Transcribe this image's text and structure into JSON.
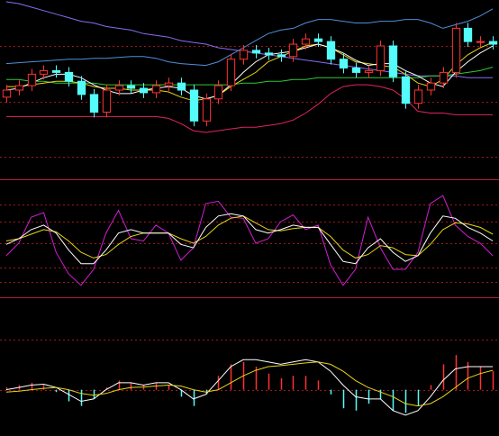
{
  "chart_data": [
    {
      "type": "candlestick",
      "categories": [
        null,
        null,
        null,
        null,
        null,
        null,
        null,
        null,
        null,
        null,
        null,
        null,
        null,
        null,
        null,
        null,
        null,
        null,
        null,
        null,
        null,
        null,
        null,
        null,
        null,
        null,
        null,
        null,
        null,
        null,
        null,
        null,
        null,
        null,
        null,
        null,
        null,
        null,
        null,
        null
      ],
      "open": [
        46,
        50,
        52.5,
        59,
        61,
        60,
        55,
        47.5,
        37.5,
        50,
        52.5,
        51,
        48.5,
        52.5,
        54,
        50,
        32.5,
        45,
        52.5,
        67.5,
        72.5,
        71,
        70,
        69,
        76,
        79,
        77.5,
        67.5,
        62.5,
        60,
        61,
        75,
        57.5,
        42.5,
        50,
        54,
        60,
        85,
        77.5,
        77.5
      ],
      "high": [
        53,
        55.5,
        62,
        64,
        64,
        63,
        58,
        50.5,
        53,
        55.5,
        55.5,
        54,
        55.5,
        57,
        57,
        53,
        48,
        55.5,
        70.5,
        75.5,
        75.5,
        74,
        73,
        79,
        82,
        82,
        80.5,
        70.5,
        65.5,
        64,
        78,
        78,
        60.5,
        53,
        57,
        63,
        88,
        88,
        80.5,
        80.5
      ],
      "low": [
        43,
        47,
        49.5,
        56,
        57,
        52,
        44.5,
        34.5,
        34.5,
        47,
        48,
        45.5,
        45.5,
        49.5,
        47,
        29.5,
        29.5,
        42,
        49.5,
        64.5,
        68,
        67,
        66,
        66,
        73,
        74.5,
        64.5,
        59.5,
        57,
        57,
        58,
        54.5,
        39.5,
        39.5,
        47,
        51,
        57,
        74.5,
        74.5,
        73
      ],
      "close": [
        50,
        52.5,
        59,
        61,
        60,
        55,
        47.5,
        37.5,
        50,
        52.5,
        51,
        48.5,
        52.5,
        54,
        50,
        32.5,
        45,
        52.5,
        67.5,
        72.5,
        71,
        70,
        69,
        76,
        79,
        77.5,
        67.5,
        62.5,
        60,
        61,
        75,
        57.5,
        42.5,
        50,
        54,
        60,
        85,
        77.5,
        77.5,
        76
      ],
      "up_color": "#ff3232",
      "down_color": "#54fcfc",
      "series": [
        {
          "color": "#4f8fd8",
          "values": [
            65,
            65.5,
            66,
            66.5,
            67,
            67.5,
            67.5,
            68,
            68,
            68.5,
            69,
            69,
            68,
            66,
            65,
            64.5,
            64,
            66,
            70,
            74,
            78,
            82,
            84,
            85,
            88,
            90,
            90,
            89,
            88,
            88,
            89,
            89,
            90,
            90,
            88,
            85,
            87,
            89,
            92,
            96
          ]
        },
        {
          "color": "#8a6cf0",
          "values": [
            100,
            99,
            97,
            95,
            93,
            91,
            89,
            88,
            86,
            85,
            84,
            82,
            81,
            80,
            78,
            77,
            76,
            74,
            73,
            72,
            71,
            70,
            69,
            68,
            67,
            66,
            65,
            64,
            63,
            62,
            61,
            60,
            59,
            58,
            58,
            58,
            58,
            57,
            57,
            57
          ]
        },
        {
          "color": "#e0245e",
          "values": [
            35,
            35,
            35,
            35,
            35,
            35,
            35,
            35,
            35,
            35,
            35,
            35,
            35,
            34,
            31,
            27,
            26,
            27,
            28,
            29,
            29,
            30,
            31,
            33,
            37,
            42,
            48,
            52,
            53,
            53,
            52,
            50,
            45,
            38,
            37,
            37,
            36,
            36,
            36,
            36
          ]
        },
        {
          "color": "#2ec83a",
          "values": [
            56,
            56,
            55,
            55,
            54,
            54,
            54,
            54,
            53,
            53,
            53,
            53,
            53,
            53,
            53,
            53,
            53,
            53,
            53,
            54,
            54,
            55,
            55,
            56,
            56,
            57,
            57,
            57,
            57,
            57,
            57,
            57,
            57,
            57,
            58,
            58,
            59,
            60,
            61,
            63
          ]
        },
        {
          "color": "#e8d41a",
          "values": [
            52,
            52,
            53,
            54,
            55,
            55,
            54,
            52,
            51,
            51,
            50,
            50,
            50,
            49,
            46,
            44,
            45,
            47,
            52,
            56,
            60,
            66,
            69,
            72,
            75,
            76,
            74,
            70,
            66,
            65,
            64,
            63,
            59,
            54,
            52,
            56,
            64,
            70,
            74,
            77
          ]
        },
        {
          "color": "#ffffff",
          "values": [
            50,
            51,
            54,
            57,
            59,
            59,
            57,
            53,
            50,
            48,
            48,
            50,
            51,
            52,
            51,
            47,
            45,
            47,
            53,
            60,
            66,
            70,
            71,
            72,
            74,
            76,
            74,
            71,
            67,
            64,
            65,
            65,
            61,
            58,
            54,
            52,
            60,
            66,
            71,
            75
          ]
        }
      ],
      "ylim": [
        0,
        100
      ],
      "gridlines": [
        75,
        43.5,
        12
      ],
      "grid_color": "#a01818"
    },
    {
      "type": "line",
      "series": [
        {
          "color": "#d21ed2",
          "values": [
            35,
            46,
            69,
            73,
            38,
            19,
            9,
            23,
            55,
            75,
            50,
            48,
            62,
            55,
            31,
            42,
            81,
            83,
            69,
            68,
            46,
            50,
            65,
            71,
            58,
            62,
            27,
            9,
            23,
            69,
            42,
            23,
            23,
            38,
            81,
            88,
            62,
            52,
            46,
            35
          ]
        },
        {
          "color": "#e8d41a",
          "values": [
            48,
            50,
            54,
            58,
            56,
            48,
            38,
            33,
            36,
            45,
            52,
            55,
            55,
            55,
            50,
            46,
            52,
            62,
            68,
            70,
            64,
            58,
            57,
            59,
            60,
            60,
            52,
            40,
            33,
            36,
            44,
            42,
            36,
            35,
            45,
            58,
            64,
            63,
            60,
            54
          ]
        },
        {
          "color": "#ffffff",
          "values": [
            45,
            50,
            58,
            62,
            55,
            40,
            28,
            28,
            40,
            55,
            58,
            55,
            55,
            55,
            45,
            42,
            60,
            70,
            72,
            70,
            58,
            55,
            58,
            62,
            60,
            60,
            45,
            30,
            28,
            42,
            50,
            38,
            30,
            35,
            55,
            70,
            68,
            60,
            55,
            48
          ]
        }
      ],
      "ylim": [
        0,
        100
      ],
      "gridlines": [
        80,
        65,
        46,
        25,
        12
      ],
      "grid_color": "#a01818"
    },
    {
      "type": "bar",
      "values": [
        0.05,
        0.1,
        0.15,
        0.1,
        -0.05,
        -0.25,
        -0.35,
        -0.2,
        0.05,
        0.2,
        0.15,
        0.1,
        0.15,
        0.1,
        -0.15,
        -0.35,
        -0.1,
        0.3,
        0.55,
        0.6,
        0.5,
        0.35,
        0.25,
        0.3,
        0.3,
        0.2,
        -0.1,
        -0.4,
        -0.45,
        -0.3,
        -0.2,
        -0.45,
        -0.5,
        -0.35,
        0.1,
        0.55,
        0.75,
        0.6,
        0.5,
        0.4
      ],
      "up_color": "#ff3232",
      "down_color": "#54fcfc",
      "series": [
        {
          "color": "#ffffff",
          "values": [
            0.0,
            0.05,
            0.1,
            0.12,
            0.05,
            -0.1,
            -0.25,
            -0.2,
            0,
            0.15,
            0.15,
            0.1,
            0.15,
            0.15,
            0,
            -0.2,
            -0.1,
            0.2,
            0.5,
            0.65,
            0.65,
            0.6,
            0.55,
            0.6,
            0.65,
            0.6,
            0.4,
            0.1,
            -0.15,
            -0.2,
            -0.2,
            -0.45,
            -0.55,
            -0.45,
            -0.15,
            0.2,
            0.45,
            0.5,
            0.5,
            0.5
          ]
        },
        {
          "color": "#e8d41a",
          "values": [
            -0.05,
            -0.03,
            0.0,
            0.03,
            0.05,
            0.0,
            -0.08,
            -0.12,
            -0.08,
            0.0,
            0.05,
            0.06,
            0.08,
            0.1,
            0.08,
            0.0,
            -0.05,
            0.0,
            0.15,
            0.3,
            0.42,
            0.5,
            0.52,
            0.55,
            0.58,
            0.6,
            0.55,
            0.4,
            0.2,
            0.05,
            -0.05,
            -0.15,
            -0.3,
            -0.35,
            -0.3,
            -0.15,
            0.05,
            0.25,
            0.35,
            0.42
          ]
        }
      ],
      "ylim": [
        -1,
        1.96
      ],
      "gridlines": [
        1.08,
        0
      ],
      "grid_color": "#a01818"
    }
  ]
}
